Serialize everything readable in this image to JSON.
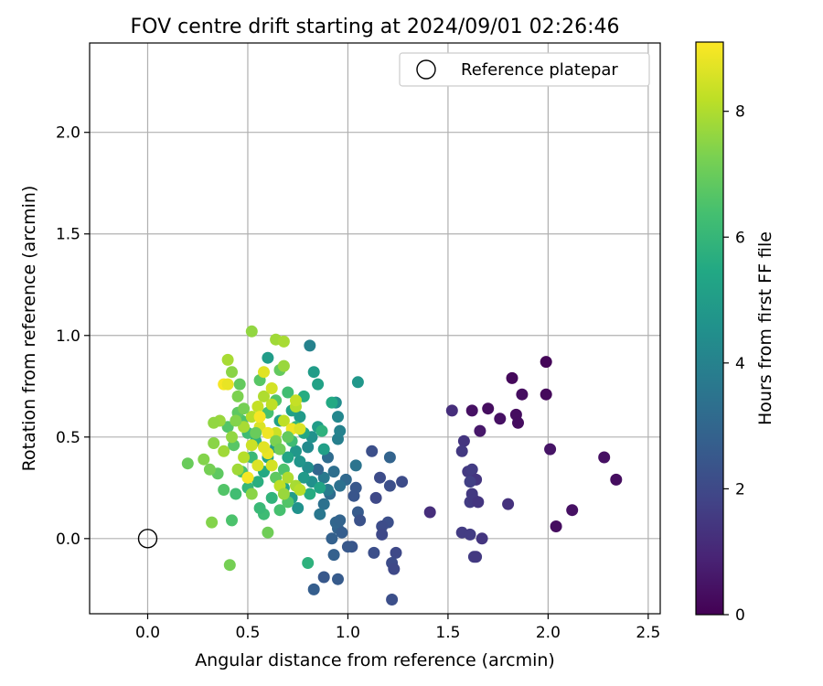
{
  "chart_data": {
    "type": "scatter",
    "title": "FOV centre drift starting at 2024/09/01 02:26:46",
    "xlabel": "Angular distance from reference (arcmin)",
    "ylabel": "Rotation from reference (arcmin)",
    "xlim": [
      -0.29,
      2.56
    ],
    "ylim": [
      -0.37,
      2.44
    ],
    "xticks": [
      0.0,
      0.5,
      1.0,
      1.5,
      2.0,
      2.5
    ],
    "xtick_labels": [
      "0.0",
      "0.5",
      "1.0",
      "1.5",
      "2.0",
      "2.5"
    ],
    "yticks": [
      0.0,
      0.5,
      1.0,
      1.5,
      2.0
    ],
    "ytick_labels": [
      "0.0",
      "0.5",
      "1.0",
      "1.5",
      "2.0"
    ],
    "grid": true,
    "legend": {
      "placement": "top-right",
      "entries": [
        "Reference platepar"
      ]
    },
    "reference_point": {
      "x": 0.0,
      "y": 0.0
    },
    "colorbar": {
      "label": "Hours from first FF file",
      "range": [
        0,
        9.1
      ],
      "ticks": [
        0,
        2,
        4,
        6,
        8
      ],
      "tick_labels": [
        "0",
        "2",
        "4",
        "6",
        "8"
      ],
      "colormap": "viridis"
    },
    "points": [
      [
        1.99,
        0.87,
        0.1
      ],
      [
        1.82,
        0.79,
        0.2
      ],
      [
        1.87,
        0.71,
        0.3
      ],
      [
        1.99,
        0.71,
        0.2
      ],
      [
        1.62,
        0.63,
        0.4
      ],
      [
        1.7,
        0.64,
        0.3
      ],
      [
        1.76,
        0.59,
        0.4
      ],
      [
        1.84,
        0.61,
        0.3
      ],
      [
        1.85,
        0.57,
        0.3
      ],
      [
        1.66,
        0.53,
        0.6
      ],
      [
        1.52,
        0.63,
        1.2
      ],
      [
        1.58,
        0.48,
        1.4
      ],
      [
        1.57,
        0.43,
        1.5
      ],
      [
        2.01,
        0.44,
        0.5
      ],
      [
        2.28,
        0.4,
        0.4
      ],
      [
        2.34,
        0.29,
        0.3
      ],
      [
        2.12,
        0.14,
        0.4
      ],
      [
        2.04,
        0.06,
        0.3
      ],
      [
        1.6,
        0.33,
        1.5
      ],
      [
        1.62,
        0.34,
        1.6
      ],
      [
        1.64,
        0.29,
        1.4
      ],
      [
        1.61,
        0.28,
        1.7
      ],
      [
        1.62,
        0.22,
        1.5
      ],
      [
        1.61,
        0.18,
        1.6
      ],
      [
        1.63,
        0.19,
        1.5
      ],
      [
        1.65,
        0.18,
        1.4
      ],
      [
        1.8,
        0.17,
        1.3
      ],
      [
        1.41,
        0.13,
        1.2
      ],
      [
        1.57,
        0.03,
        1.6
      ],
      [
        1.61,
        0.02,
        1.6
      ],
      [
        1.67,
        0.0,
        1.4
      ],
      [
        1.63,
        -0.09,
        1.6
      ],
      [
        1.64,
        -0.09,
        1.5
      ],
      [
        1.12,
        0.43,
        2.2
      ],
      [
        1.27,
        0.28,
        2.1
      ],
      [
        1.21,
        0.26,
        2.2
      ],
      [
        1.21,
        0.4,
        2.9
      ],
      [
        1.14,
        0.2,
        2.0
      ],
      [
        1.16,
        0.3,
        2.1
      ],
      [
        1.2,
        0.08,
        2.2
      ],
      [
        1.17,
        0.06,
        2.1
      ],
      [
        1.17,
        0.02,
        2.0
      ],
      [
        1.24,
        -0.07,
        2.0
      ],
      [
        1.22,
        -0.12,
        2.1
      ],
      [
        1.23,
        -0.15,
        2.0
      ],
      [
        1.22,
        -0.3,
        2.2
      ],
      [
        1.13,
        -0.07,
        2.2
      ],
      [
        1.04,
        0.25,
        2.5
      ],
      [
        1.03,
        0.21,
        2.4
      ],
      [
        1.05,
        0.13,
        2.6
      ],
      [
        1.06,
        0.09,
        2.3
      ],
      [
        1.02,
        -0.04,
        2.4
      ],
      [
        1.0,
        -0.04,
        2.5
      ],
      [
        0.95,
        -0.2,
        2.6
      ],
      [
        0.88,
        -0.19,
        2.5
      ],
      [
        0.83,
        -0.25,
        2.7
      ],
      [
        0.93,
        -0.08,
        2.8
      ],
      [
        0.92,
        0.0,
        2.8
      ],
      [
        0.95,
        0.05,
        2.9
      ],
      [
        0.94,
        0.08,
        3.0
      ],
      [
        0.96,
        0.09,
        2.9
      ],
      [
        0.97,
        0.03,
        2.7
      ],
      [
        1.04,
        0.36,
        3.5
      ],
      [
        0.99,
        0.29,
        3.1
      ],
      [
        0.96,
        0.26,
        3.4
      ],
      [
        0.91,
        0.22,
        3.2
      ],
      [
        0.88,
        0.17,
        3.4
      ],
      [
        0.86,
        0.12,
        3.6
      ],
      [
        0.9,
        0.24,
        3.8
      ],
      [
        0.93,
        0.33,
        3.3
      ],
      [
        0.88,
        0.3,
        3.7
      ],
      [
        0.85,
        0.34,
        3.0
      ],
      [
        0.9,
        0.4,
        3.2
      ],
      [
        0.95,
        0.49,
        3.9
      ],
      [
        0.96,
        0.53,
        4.0
      ],
      [
        0.95,
        0.6,
        4.2
      ],
      [
        0.94,
        0.67,
        4.4
      ],
      [
        1.05,
        0.77,
        4.8
      ],
      [
        0.85,
        0.76,
        5.2
      ],
      [
        0.81,
        0.95,
        4.0
      ],
      [
        0.83,
        0.82,
        5.0
      ],
      [
        0.8,
        0.45,
        4.3
      ],
      [
        0.82,
        0.5,
        4.6
      ],
      [
        0.85,
        0.55,
        5.0
      ],
      [
        0.78,
        0.52,
        5.4
      ],
      [
        0.8,
        0.35,
        4.4
      ],
      [
        0.76,
        0.38,
        4.7
      ],
      [
        0.82,
        0.28,
        4.5
      ],
      [
        0.78,
        0.3,
        4.9
      ],
      [
        0.86,
        0.25,
        5.3
      ],
      [
        0.81,
        0.22,
        5.6
      ],
      [
        0.88,
        0.44,
        5.1
      ],
      [
        0.92,
        0.67,
        5.5
      ],
      [
        0.87,
        0.53,
        5.8
      ],
      [
        0.8,
        -0.12,
        5.8
      ],
      [
        0.75,
        0.15,
        4.6
      ],
      [
        0.72,
        0.2,
        5.0
      ],
      [
        0.68,
        0.25,
        5.4
      ],
      [
        0.74,
        0.43,
        4.8
      ],
      [
        0.7,
        0.4,
        5.3
      ],
      [
        0.76,
        0.6,
        4.9
      ],
      [
        0.78,
        0.7,
        5.6
      ],
      [
        0.72,
        0.63,
        5.2
      ],
      [
        0.66,
        0.58,
        5.1
      ],
      [
        0.64,
        0.45,
        4.9
      ],
      [
        0.6,
        0.4,
        5.3
      ],
      [
        0.58,
        0.33,
        5.5
      ],
      [
        0.55,
        0.28,
        5.7
      ],
      [
        0.62,
        0.2,
        5.9
      ],
      [
        0.58,
        0.12,
        6.2
      ],
      [
        0.5,
        0.25,
        6.0
      ],
      [
        0.47,
        0.33,
        6.4
      ],
      [
        0.52,
        0.4,
        6.1
      ],
      [
        0.54,
        0.48,
        5.8
      ],
      [
        0.5,
        0.52,
        6.2
      ],
      [
        0.47,
        0.58,
        6.5
      ],
      [
        0.45,
        0.62,
        6.8
      ],
      [
        0.6,
        0.62,
        6.4
      ],
      [
        0.64,
        0.68,
        6.6
      ],
      [
        0.7,
        0.72,
        6.3
      ],
      [
        0.74,
        0.55,
        6.0
      ],
      [
        0.72,
        0.48,
        6.2
      ],
      [
        0.68,
        0.34,
        6.5
      ],
      [
        0.64,
        0.3,
        6.8
      ],
      [
        0.6,
        0.89,
        5.0
      ],
      [
        0.66,
        0.83,
        6.9
      ],
      [
        0.56,
        0.78,
        6.7
      ],
      [
        0.46,
        0.76,
        6.9
      ],
      [
        0.4,
        0.55,
        6.6
      ],
      [
        0.43,
        0.46,
        6.7
      ],
      [
        0.44,
        0.22,
        6.3
      ],
      [
        0.56,
        0.15,
        6.1
      ],
      [
        0.6,
        0.03,
        7.1
      ],
      [
        0.38,
        0.24,
        6.6
      ],
      [
        0.35,
        0.32,
        6.8
      ],
      [
        0.31,
        0.34,
        7.2
      ],
      [
        0.28,
        0.39,
        7.4
      ],
      [
        0.2,
        0.37,
        7.0
      ],
      [
        0.66,
        0.14,
        6.4
      ],
      [
        0.7,
        0.18,
        6.6
      ],
      [
        0.52,
        1.02,
        7.6
      ],
      [
        0.64,
        0.98,
        7.8
      ],
      [
        0.68,
        0.97,
        7.9
      ],
      [
        0.42,
        0.82,
        7.5
      ],
      [
        0.4,
        0.88,
        7.9
      ],
      [
        0.45,
        0.7,
        7.3
      ],
      [
        0.36,
        0.58,
        7.7
      ],
      [
        0.33,
        0.57,
        7.6
      ],
      [
        0.33,
        0.47,
        7.5
      ],
      [
        0.38,
        0.43,
        7.8
      ],
      [
        0.42,
        0.5,
        7.6
      ],
      [
        0.48,
        0.55,
        7.9
      ],
      [
        0.52,
        0.6,
        8.1
      ],
      [
        0.55,
        0.65,
        8.3
      ],
      [
        0.58,
        0.7,
        8.0
      ],
      [
        0.62,
        0.74,
        8.5
      ],
      [
        0.58,
        0.82,
        8.7
      ],
      [
        0.68,
        0.85,
        7.7
      ],
      [
        0.62,
        0.66,
        8.2
      ],
      [
        0.56,
        0.55,
        8.6
      ],
      [
        0.52,
        0.46,
        8.4
      ],
      [
        0.48,
        0.4,
        8.1
      ],
      [
        0.45,
        0.34,
        7.8
      ],
      [
        0.5,
        0.3,
        8.3
      ],
      [
        0.55,
        0.36,
        8.6
      ],
      [
        0.6,
        0.42,
        8.8
      ],
      [
        0.64,
        0.52,
        8.4
      ],
      [
        0.68,
        0.58,
        8.2
      ],
      [
        0.72,
        0.54,
        8.9
      ],
      [
        0.76,
        0.54,
        8.6
      ],
      [
        0.74,
        0.65,
        8.1
      ],
      [
        0.74,
        0.68,
        8.3
      ],
      [
        0.7,
        0.3,
        8.0
      ],
      [
        0.66,
        0.26,
        8.2
      ],
      [
        0.74,
        0.26,
        7.9
      ],
      [
        0.76,
        0.24,
        8.1
      ],
      [
        0.68,
        0.22,
        7.7
      ],
      [
        0.52,
        0.22,
        7.5
      ],
      [
        0.5,
        0.3,
        9.0
      ],
      [
        0.38,
        0.76,
        9.0
      ],
      [
        0.4,
        0.76,
        8.8
      ],
      [
        0.32,
        0.08,
        7.4
      ],
      [
        0.41,
        -0.13,
        7.2
      ],
      [
        0.42,
        0.09,
        6.5
      ],
      [
        0.56,
        0.6,
        9.0
      ],
      [
        0.6,
        0.52,
        8.9
      ],
      [
        0.58,
        0.45,
        8.7
      ],
      [
        0.62,
        0.36,
        8.5
      ],
      [
        0.64,
        0.48,
        7.3
      ],
      [
        0.66,
        0.44,
        7.1
      ],
      [
        0.7,
        0.5,
        6.9
      ],
      [
        0.54,
        0.52,
        7.0
      ],
      [
        0.48,
        0.64,
        7.2
      ],
      [
        0.44,
        0.58,
        7.4
      ]
    ]
  }
}
